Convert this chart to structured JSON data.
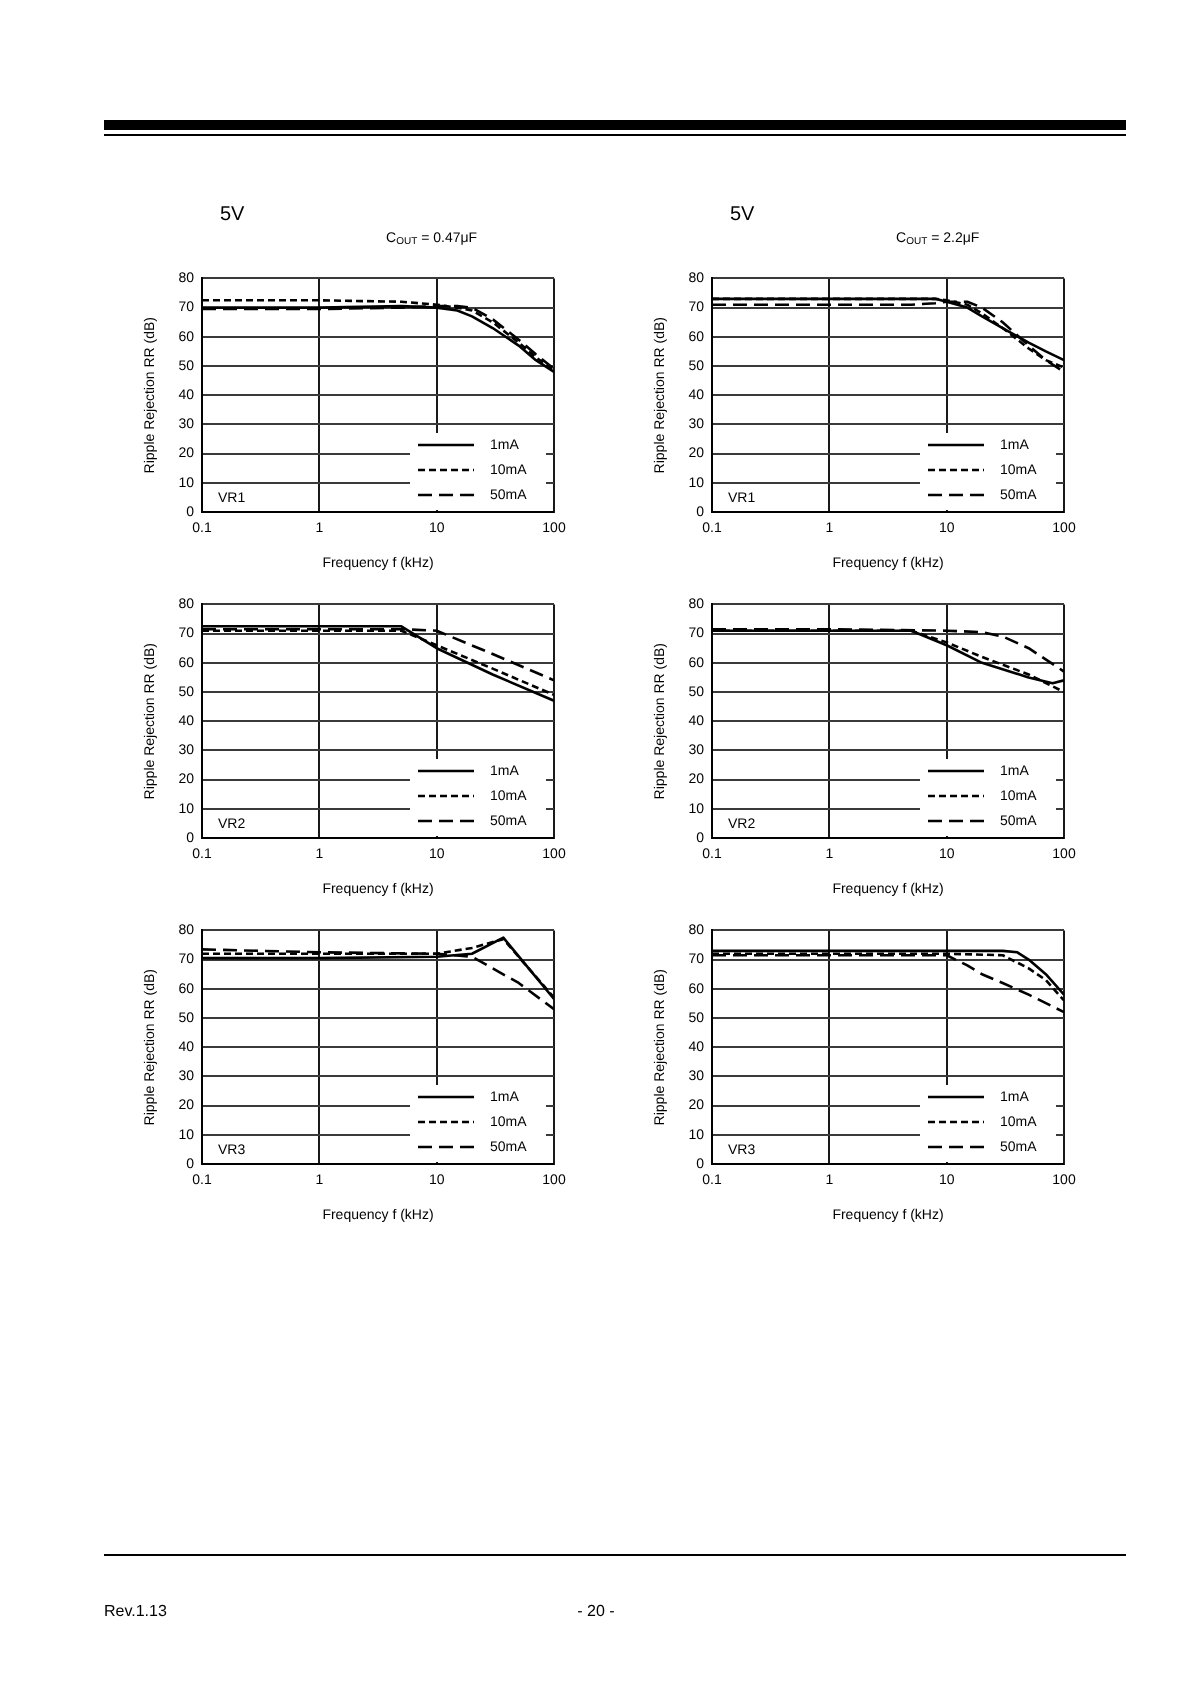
{
  "chart_data": [
    {
      "type": "line",
      "title": "5V",
      "subtitle": "C$_{OUT}$ = 0.47μF",
      "xlabel": "Frequency f (kHz)",
      "ylabel": "Ripple Rejection RR (dB)",
      "annotations": [
        "VR1"
      ],
      "log": "x",
      "xlim": [
        0.1,
        100
      ],
      "xticks": [
        0.1,
        1,
        10,
        100
      ],
      "ylim": [
        0,
        80
      ],
      "yticks": [
        0,
        10,
        20,
        30,
        40,
        50,
        60,
        70,
        80
      ],
      "grid": true,
      "legend": "bottom right",
      "marker": "none",
      "series": [
        {
          "name": "1mA",
          "color": "#000000",
          "line_style": "solid",
          "x": [
            0.1,
            1,
            5,
            10,
            15,
            20,
            30,
            50,
            70,
            100
          ],
          "values": [
            70,
            70,
            70.5,
            70,
            69,
            67,
            63,
            57,
            52,
            48
          ]
        },
        {
          "name": "10mA",
          "color": "#000000",
          "line_style": "dashed",
          "x": [
            0.1,
            1,
            5,
            10,
            15,
            20,
            30,
            50,
            70,
            100
          ],
          "values": [
            72.5,
            72.5,
            72,
            71,
            70,
            69,
            65,
            58,
            53,
            48.5
          ]
        },
        {
          "name": "50mA",
          "color": "#000000",
          "line_style": "dashed",
          "x": [
            0.1,
            1,
            5,
            10,
            15,
            20,
            30,
            50,
            70,
            100
          ],
          "values": [
            69.5,
            69.5,
            70,
            70.5,
            70.5,
            70,
            66,
            59,
            54,
            49
          ]
        }
      ]
    },
    {
      "type": "line",
      "title": "5V",
      "subtitle": "C$_{OUT}$ = 2.2μF",
      "xlabel": "Frequency f (kHz)",
      "ylabel": "Ripple Rejection RR (dB)",
      "annotations": [
        "VR1"
      ],
      "log": "x",
      "xlim": [
        0.1,
        100
      ],
      "xticks": [
        0.1,
        1,
        10,
        100
      ],
      "ylim": [
        0,
        80
      ],
      "yticks": [
        0,
        10,
        20,
        30,
        40,
        50,
        60,
        70,
        80
      ],
      "grid": true,
      "legend": "bottom right",
      "marker": "none",
      "series": [
        {
          "name": "1mA",
          "color": "#000000",
          "line_style": "solid",
          "x": [
            0.1,
            1,
            5,
            8,
            10,
            15,
            20,
            30,
            50,
            70,
            100
          ],
          "values": [
            73,
            73,
            73,
            73,
            72,
            70,
            67,
            63,
            58,
            55,
            52
          ]
        },
        {
          "name": "10mA",
          "color": "#000000",
          "line_style": "dashed",
          "x": [
            0.1,
            1,
            5,
            8,
            10,
            15,
            20,
            30,
            50,
            70,
            100
          ],
          "values": [
            73,
            73,
            73,
            73,
            72.5,
            71,
            68,
            63,
            56,
            52,
            49.5
          ]
        },
        {
          "name": "50mA",
          "color": "#000000",
          "line_style": "dashed",
          "x": [
            0.1,
            1,
            5,
            8,
            10,
            15,
            20,
            30,
            50,
            70,
            100
          ],
          "values": [
            71,
            71,
            71,
            71.5,
            72,
            72,
            70,
            65,
            57,
            52,
            48
          ]
        }
      ]
    },
    {
      "type": "line",
      "xlabel": "Frequency f (kHz)",
      "ylabel": "Ripple Rejection RR (dB)",
      "annotations": [
        "VR2"
      ],
      "log": "x",
      "xlim": [
        0.1,
        100
      ],
      "xticks": [
        0.1,
        1,
        10,
        100
      ],
      "ylim": [
        0,
        80
      ],
      "yticks": [
        0,
        10,
        20,
        30,
        40,
        50,
        60,
        70,
        80
      ],
      "grid": true,
      "legend": "bottom right",
      "marker": "none",
      "series": [
        {
          "name": "1mA",
          "color": "#000000",
          "line_style": "solid",
          "x": [
            0.1,
            1,
            5,
            10,
            30,
            100
          ],
          "values": [
            72.5,
            72.5,
            72.5,
            65,
            56,
            47
          ]
        },
        {
          "name": "10mA",
          "color": "#000000",
          "line_style": "dashed",
          "x": [
            0.1,
            1,
            5,
            10,
            30,
            100
          ],
          "values": [
            71,
            71,
            71,
            66,
            58,
            49
          ]
        },
        {
          "name": "50mA",
          "color": "#000000",
          "line_style": "dashed",
          "x": [
            0.1,
            1,
            5,
            10,
            30,
            100
          ],
          "values": [
            71.5,
            71.5,
            71.5,
            71,
            63,
            54
          ]
        }
      ]
    },
    {
      "type": "line",
      "xlabel": "Frequency f (kHz)",
      "ylabel": "Ripple Rejection RR (dB)",
      "annotations": [
        "VR2"
      ],
      "log": "x",
      "xlim": [
        0.1,
        100
      ],
      "xticks": [
        0.1,
        1,
        10,
        100
      ],
      "ylim": [
        0,
        80
      ],
      "yticks": [
        0,
        10,
        20,
        30,
        40,
        50,
        60,
        70,
        80
      ],
      "grid": true,
      "legend": "bottom right",
      "marker": "none",
      "series": [
        {
          "name": "1mA",
          "color": "#000000",
          "line_style": "solid",
          "x": [
            0.1,
            1,
            5,
            10,
            20,
            50,
            80,
            100
          ],
          "values": [
            71,
            71,
            71,
            66,
            60,
            55,
            53,
            54
          ]
        },
        {
          "name": "10mA",
          "color": "#000000",
          "line_style": "dashed",
          "x": [
            0.1,
            1,
            5,
            10,
            20,
            50,
            100
          ],
          "values": [
            71,
            71,
            71,
            67,
            62,
            56,
            50
          ]
        },
        {
          "name": "50mA",
          "color": "#000000",
          "line_style": "dashed",
          "x": [
            0.1,
            1,
            10,
            20,
            30,
            50,
            100
          ],
          "values": [
            71.5,
            71.5,
            71,
            70.5,
            69,
            65,
            57
          ]
        }
      ]
    },
    {
      "type": "line",
      "xlabel": "Frequency f (kHz)",
      "ylabel": "Ripple Rejection RR (dB)",
      "annotations": [
        "VR3"
      ],
      "log": "x",
      "xlim": [
        0.1,
        100
      ],
      "xticks": [
        0.1,
        1,
        10,
        100
      ],
      "ylim": [
        0,
        80
      ],
      "yticks": [
        0,
        10,
        20,
        30,
        40,
        50,
        60,
        70,
        80
      ],
      "grid": true,
      "legend": "bottom right",
      "marker": "none",
      "series": [
        {
          "name": "1mA",
          "color": "#000000",
          "line_style": "solid",
          "x": [
            0.1,
            1,
            10,
            20,
            37,
            100
          ],
          "values": [
            70.5,
            70.5,
            71,
            72,
            77.5,
            56.5
          ]
        },
        {
          "name": "10mA",
          "color": "#000000",
          "line_style": "dashed",
          "x": [
            0.1,
            1,
            10,
            20,
            37,
            100
          ],
          "values": [
            72,
            72,
            72,
            74,
            77,
            57
          ]
        },
        {
          "name": "50mA",
          "color": "#000000",
          "line_style": "dashed",
          "x": [
            0.1,
            1,
            10,
            20,
            30,
            50,
            100
          ],
          "values": [
            73.5,
            72.5,
            72,
            71,
            67,
            62,
            53
          ]
        }
      ]
    },
    {
      "type": "line",
      "xlabel": "Frequency f (kHz)",
      "ylabel": "Ripple Rejection RR (dB)",
      "annotations": [
        "VR3"
      ],
      "log": "x",
      "xlim": [
        0.1,
        100
      ],
      "xticks": [
        0.1,
        1,
        10,
        100
      ],
      "ylim": [
        0,
        80
      ],
      "yticks": [
        0,
        10,
        20,
        30,
        40,
        50,
        60,
        70,
        80
      ],
      "grid": true,
      "legend": "bottom right",
      "marker": "none",
      "series": [
        {
          "name": "1mA",
          "color": "#000000",
          "line_style": "solid",
          "x": [
            0.1,
            1,
            10,
            30,
            40,
            50,
            70,
            100
          ],
          "values": [
            73,
            73,
            73,
            73,
            72.5,
            70,
            65,
            58
          ]
        },
        {
          "name": "10mA",
          "color": "#000000",
          "line_style": "dashed",
          "x": [
            0.1,
            1,
            10,
            30,
            50,
            70,
            100
          ],
          "values": [
            72,
            72,
            72,
            71.5,
            67,
            63,
            56
          ]
        },
        {
          "name": "50mA",
          "color": "#000000",
          "line_style": "dashed",
          "x": [
            0.1,
            1,
            10,
            15,
            20,
            30,
            50,
            100
          ],
          "values": [
            71.5,
            71.5,
            71.5,
            68,
            65,
            62,
            58,
            52
          ]
        }
      ]
    },
    {
      "type": "other",
      "annotations": [
        "Rev.1.13",
        "- 20 -"
      ]
    }
  ]
}
